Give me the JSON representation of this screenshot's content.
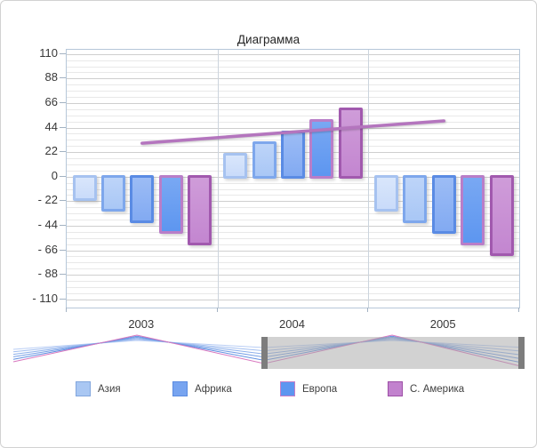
{
  "chart_data": {
    "type": "bar",
    "title": "Диаграмма",
    "categories": [
      "2003",
      "2004",
      "2005"
    ],
    "series": [
      {
        "name": "Азия",
        "values": [
          -20,
          20,
          -30
        ],
        "fill": "#c9dbfa",
        "fill_light": "#d9e6fb",
        "border": "#a6c2f0"
      },
      {
        "name": "Африка",
        "values": [
          -30,
          30,
          -40
        ],
        "fill": "#a9c7f6",
        "fill_light": "#bdd4f8",
        "border": "#7ea7ec"
      },
      {
        "name": "",
        "values": [
          -40,
          40,
          -50
        ],
        "fill": "#82aaf2",
        "fill_light": "#9cbcf5",
        "border": "#5a8be4"
      },
      {
        "name": "Европа",
        "values": [
          -50,
          50,
          -60
        ],
        "fill": "#5d96f0",
        "fill_light": "#79a8f3",
        "border": "#b97ec8"
      },
      {
        "name": "С. Америка",
        "values": [
          -60,
          60,
          -70
        ],
        "fill": "#c386d0",
        "fill_light": "#cf9cd9",
        "border": "#a159ae"
      }
    ],
    "trend_line": {
      "values": [
        30,
        40,
        50
      ],
      "color": "#b475be"
    },
    "y_axis": {
      "min": -110,
      "max": 110,
      "major_step": 22,
      "minor_step": 5.5,
      "tick_values": [
        110,
        88,
        66,
        44,
        22,
        0,
        -22,
        -44,
        -66,
        -88,
        -110
      ],
      "tick_labels": [
        "110",
        "88",
        "66",
        "44",
        "22",
        "0",
        "- 22",
        "- 44",
        "- 66",
        "- 88",
        "- 110"
      ]
    },
    "grid": true,
    "legend_position": "bottom",
    "legend_entries": [
      "Азия",
      "Африка",
      "Европа",
      "С. Америка"
    ]
  },
  "legend": {
    "items": [
      {
        "label": "Азия",
        "fill": "#a9c7f3",
        "border": "#82a6dd"
      },
      {
        "label": "Африка",
        "fill": "#77a4f0",
        "border": "#5a8be0"
      },
      {
        "label": "Европа",
        "fill": "#5d96f0",
        "border": "#c77fc8"
      },
      {
        "label": "С. Америка",
        "fill": "#c282ce",
        "border": "#9d4fa6"
      }
    ]
  },
  "navigator": {
    "selection": {
      "start": 0.485,
      "end": 1.0
    },
    "overlay_color": "rgba(168,168,168,0.52)",
    "handle_color": "#7d7d7d",
    "line_colors": [
      "#b9cef5",
      "#a3bff0",
      "#8db0eb",
      "#77a0e6",
      "#6190e1",
      "#d877bf"
    ]
  }
}
